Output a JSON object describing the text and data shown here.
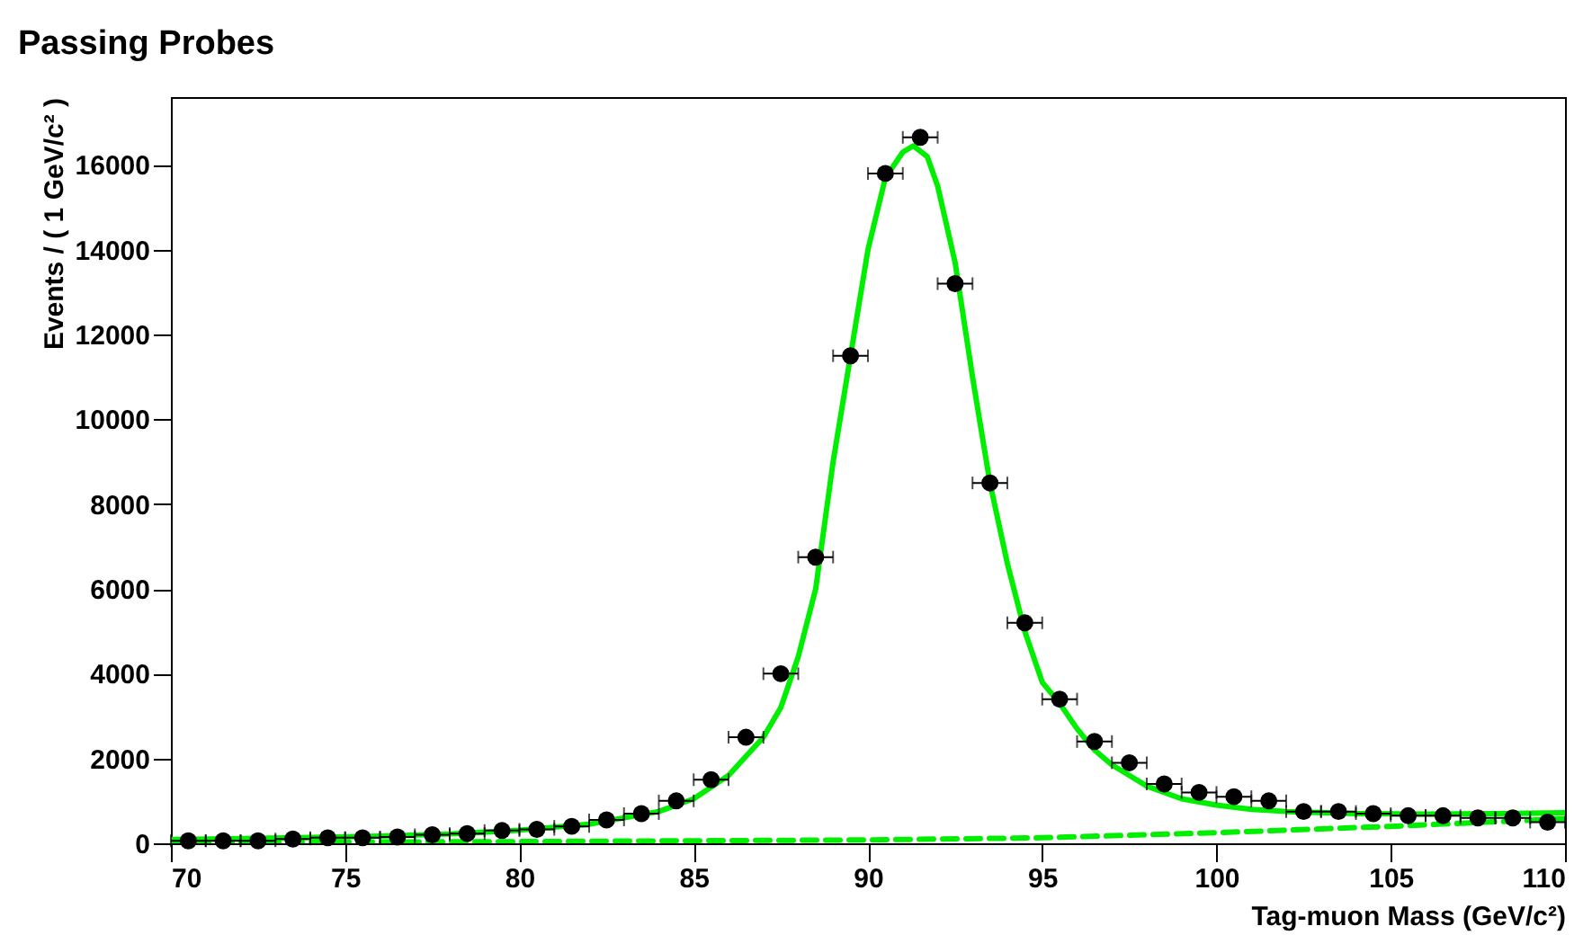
{
  "chart_data": {
    "type": "scatter",
    "title": "Passing Probes",
    "xlabel": "Tag-muon Mass (GeV/c²)",
    "ylabel": "Events / ( 1 GeV/c² )",
    "xlim": [
      70,
      110
    ],
    "xticks": [
      70,
      75,
      80,
      85,
      90,
      95,
      100,
      105,
      110
    ],
    "ylim": [
      0,
      17600
    ],
    "yticks": [
      0,
      2000,
      4000,
      6000,
      8000,
      10000,
      12000,
      14000,
      16000
    ],
    "grid": false,
    "series": [
      {
        "color": "#000000",
        "marker": "circle",
        "x": [
          70.5,
          71.5,
          72.5,
          73.5,
          74.5,
          75.5,
          76.5,
          77.5,
          78.5,
          79.5,
          80.5,
          81.5,
          82.5,
          83.5,
          84.5,
          85.5,
          86.5,
          87.5,
          88.5,
          89.5,
          90.5,
          91.5,
          92.5,
          93.5,
          94.5,
          95.5,
          96.5,
          97.5,
          98.5,
          99.5,
          100.5,
          101.5,
          102.5,
          103.5,
          104.5,
          105.5,
          106.5,
          107.5,
          108.5,
          109.5
        ],
        "values": [
          60,
          60,
          60,
          100,
          130,
          130,
          150,
          200,
          230,
          300,
          330,
          400,
          550,
          700,
          1000,
          1500,
          2500,
          4000,
          6750,
          11500,
          15800,
          16650,
          13200,
          8500,
          5200,
          3400,
          2400,
          1900,
          1400,
          1200,
          1100,
          1000,
          750,
          750,
          700,
          650,
          650,
          600,
          600,
          500
        ],
        "xerrors": [
          0.5,
          0.5,
          0.5,
          0.5,
          0.5,
          0.5,
          0.5,
          0.5,
          0.5,
          0.5,
          0.5,
          0.5,
          0.5,
          0.5,
          0.5,
          0.5,
          0.5,
          0.5,
          0.5,
          0.5,
          0.5,
          0.5,
          0.5,
          0.5,
          0.5,
          0.5,
          0.5,
          0.5,
          0.5,
          0.5,
          0.5,
          0.5,
          0.5,
          0.5,
          0.5,
          0.5,
          0.5,
          0.5,
          0.5,
          0.5
        ]
      },
      {
        "type": "line",
        "color": "#00ee00",
        "line_style": "solid",
        "x": [
          70,
          72,
          74,
          76,
          78,
          80,
          82,
          84,
          85,
          86,
          87,
          87.5,
          88,
          88.5,
          89,
          89.5,
          90,
          90.5,
          91,
          91.3,
          91.7,
          92,
          92.5,
          93,
          93.5,
          94,
          94.5,
          95,
          95.5,
          96,
          96.5,
          97,
          97.5,
          98,
          99,
          100,
          101,
          102,
          104,
          106,
          108,
          110
        ],
        "values": [
          90,
          110,
          140,
          170,
          220,
          310,
          450,
          750,
          1050,
          1600,
          2500,
          3200,
          4400,
          6000,
          9000,
          11500,
          14000,
          15700,
          16300,
          16450,
          16200,
          15500,
          13700,
          11000,
          8500,
          6600,
          5000,
          3800,
          3300,
          2700,
          2200,
          1850,
          1600,
          1350,
          1050,
          900,
          800,
          750,
          700,
          690,
          700,
          720
        ]
      },
      {
        "type": "line",
        "color": "#00ee00",
        "line_style": "dashed",
        "x": [
          70,
          80,
          90,
          95,
          100,
          105,
          110
        ],
        "values": [
          20,
          40,
          80,
          130,
          250,
          400,
          580
        ]
      }
    ]
  }
}
